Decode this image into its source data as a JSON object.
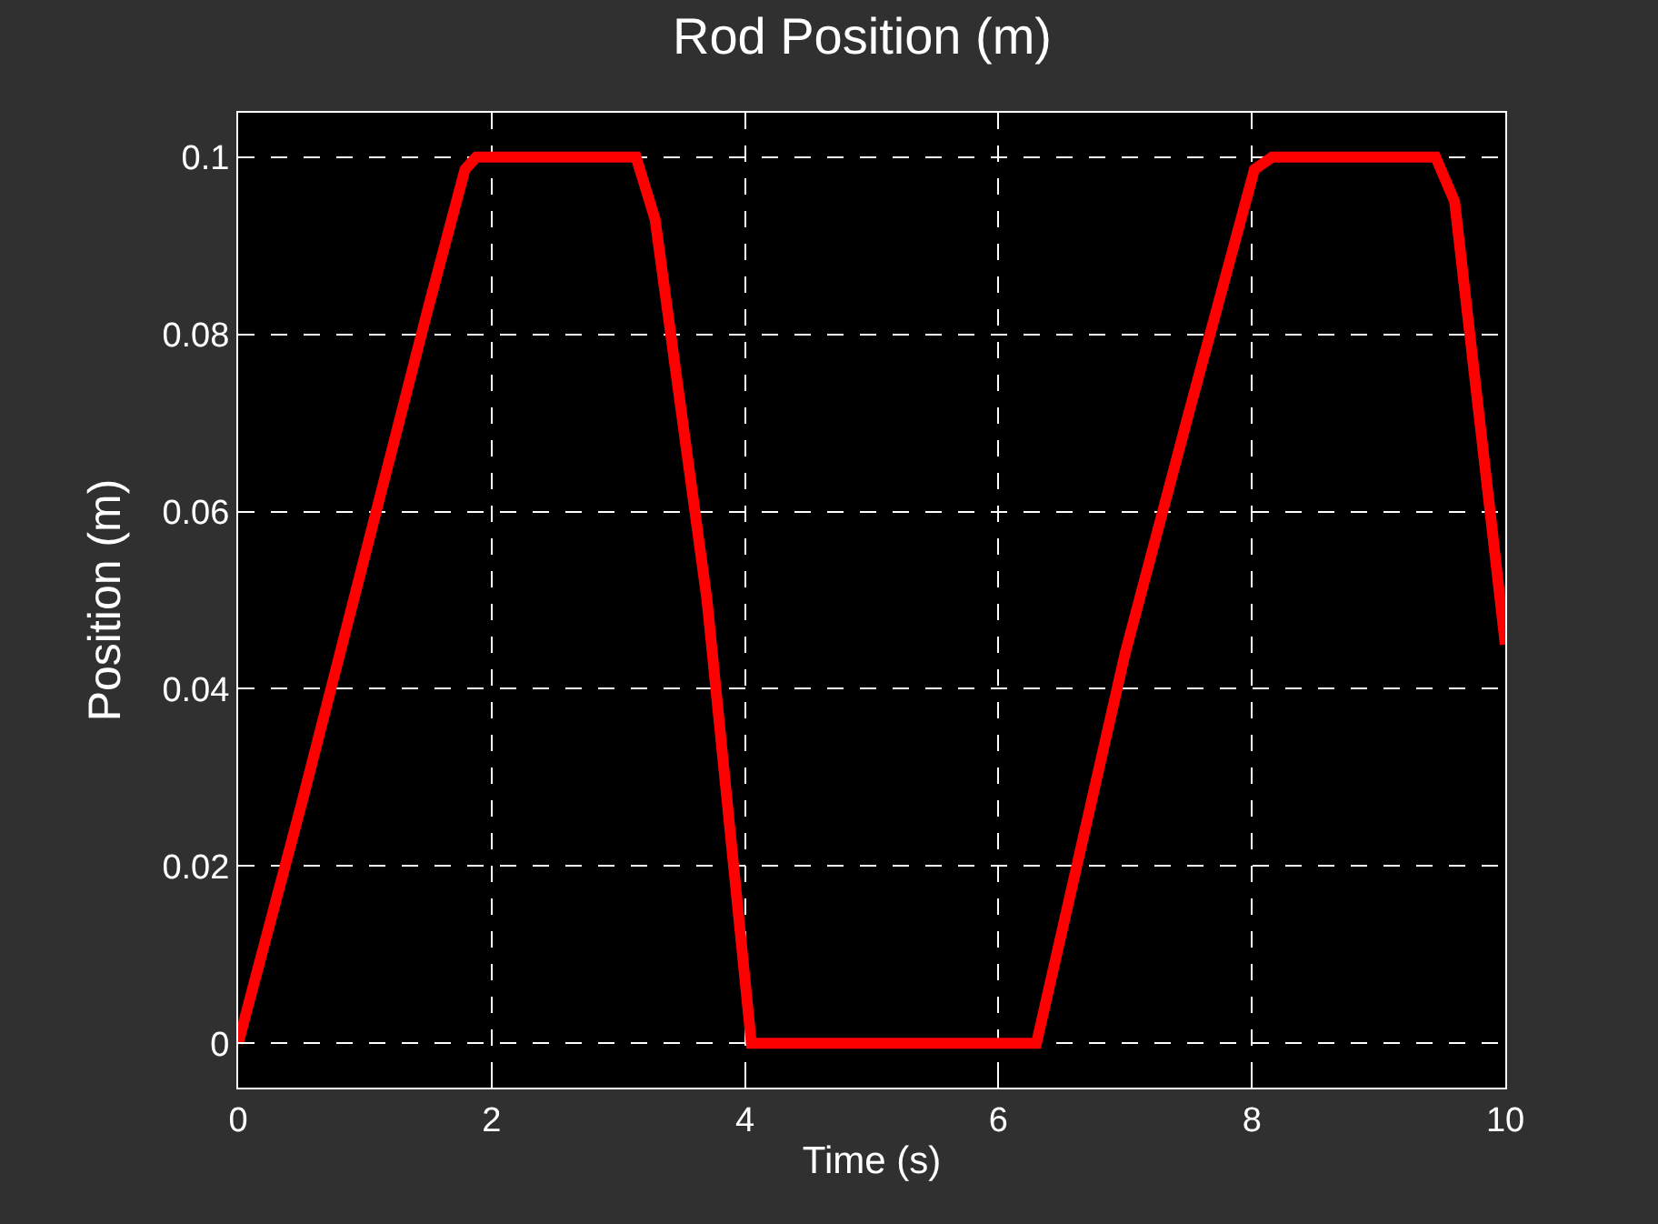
{
  "chart_data": {
    "type": "line",
    "title": "Rod Position (m)",
    "xlabel": "Time (s)",
    "ylabel": "Position (m)",
    "x": [
      0,
      0.5,
      1.0,
      1.5,
      1.79,
      1.88,
      3.14,
      3.29,
      3.7,
      4.05,
      6.3,
      7.0,
      7.5,
      8.02,
      8.16,
      9.45,
      9.6,
      9.8,
      10
    ],
    "series": [
      {
        "color": "#ff0000",
        "values": [
          0,
          0.027,
          0.055,
          0.083,
          0.0986,
          0.1,
          0.1,
          0.093,
          0.05,
          0,
          0,
          0.044,
          0.071,
          0.0986,
          0.1,
          0.1,
          0.095,
          0.07,
          0.045
        ]
      }
    ],
    "xlim": [
      0,
      10
    ],
    "ylim": [
      -0.005,
      0.105
    ],
    "xticks": [
      0,
      2,
      4,
      6,
      8,
      10
    ],
    "yticks": [
      0,
      0.02,
      0.04,
      0.06,
      0.08,
      0.1
    ],
    "grid": true,
    "line_style": "solid",
    "marker": "none"
  }
}
